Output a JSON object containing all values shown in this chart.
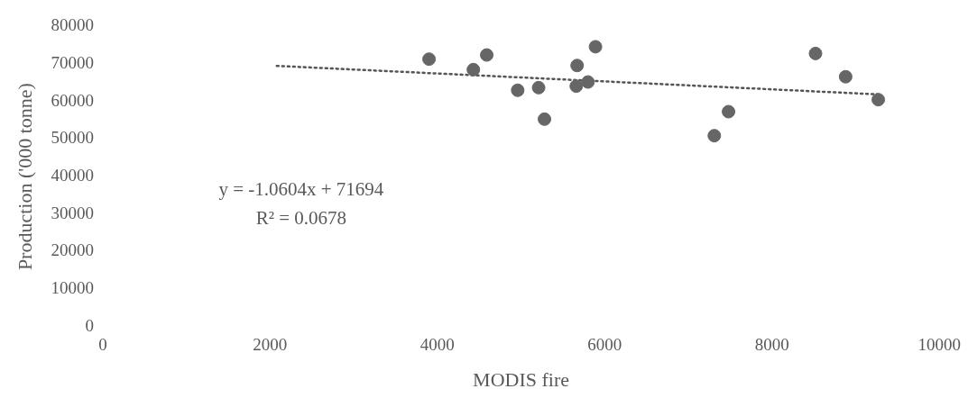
{
  "chart_data": {
    "type": "scatter",
    "xlabel": "MODIS fire",
    "ylabel": "Production ('000 tonne)",
    "xlim": [
      0,
      10000
    ],
    "xticks": [
      0,
      2000,
      4000,
      6000,
      8000,
      10000
    ],
    "ylim": [
      0,
      80000
    ],
    "yticks": [
      0,
      10000,
      20000,
      30000,
      40000,
      50000,
      60000,
      70000,
      80000
    ],
    "grid": false,
    "legend": false,
    "series": [
      {
        "color": "#666666",
        "marker": "circle",
        "x": [
          3900,
          4430,
          4590,
          4960,
          5210,
          5280,
          5670,
          5660,
          5800,
          5890,
          7310,
          7480,
          8520,
          8880,
          9270
        ],
        "values": [
          71300,
          68500,
          72400,
          63000,
          63700,
          55300,
          69600,
          64100,
          65200,
          74600,
          50900,
          57300,
          72800,
          66600,
          60500
        ]
      },
      {
        "type": "line",
        "color": "#555555",
        "line_style": "dotted",
        "marker": "none",
        "x": [
          2080,
          9270
        ],
        "values": [
          69500,
          61900
        ]
      }
    ],
    "annotations": [
      "y = -1.0604x + 71694",
      "R² = 0.0678"
    ]
  }
}
